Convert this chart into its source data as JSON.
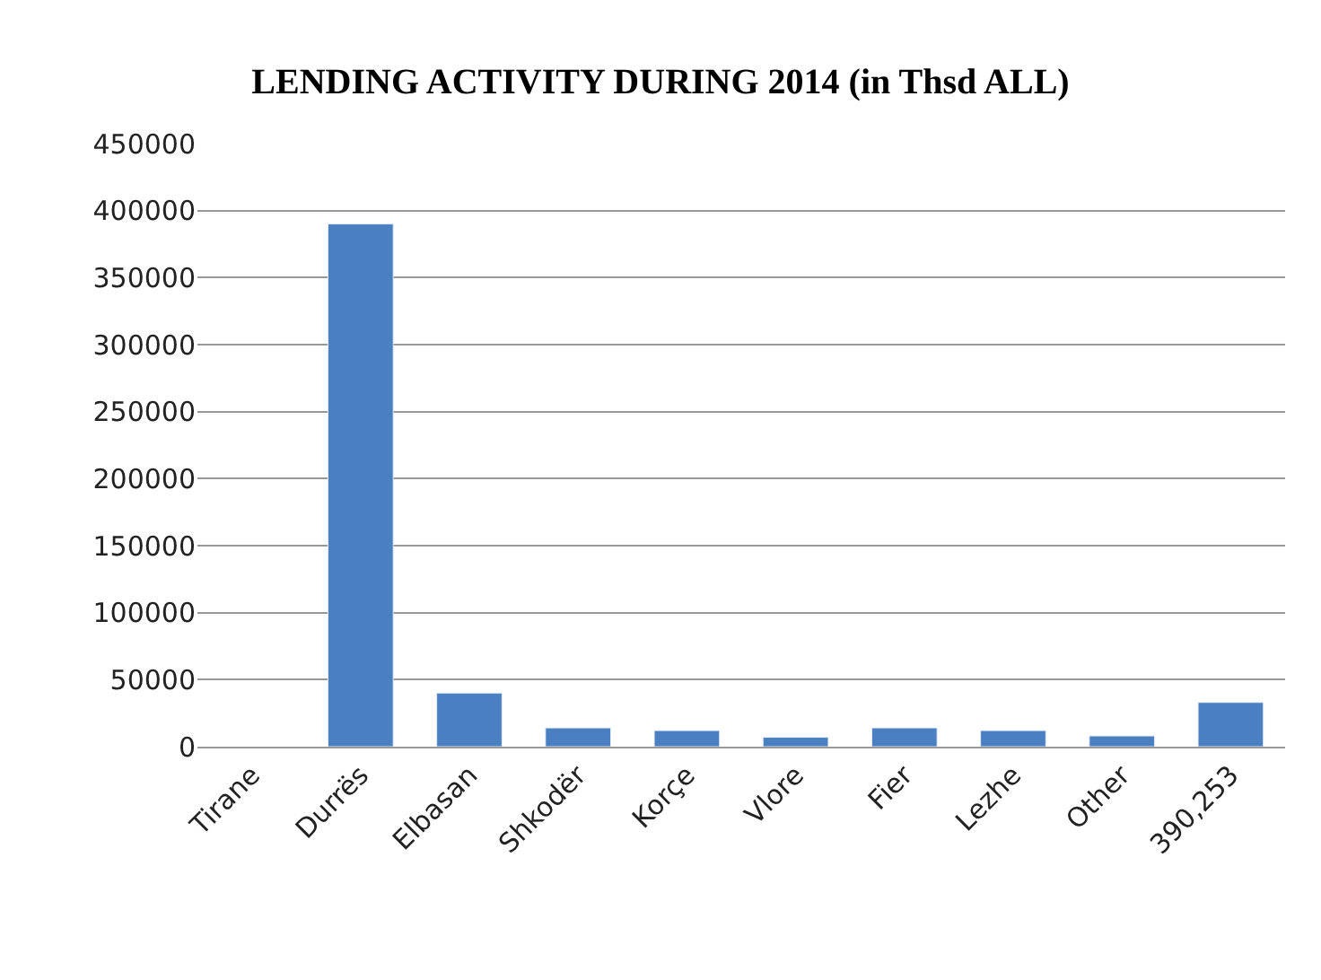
{
  "chart_data": {
    "type": "bar",
    "title": "LENDING ACTIVITY DURING 2014 (in Thsd ALL)",
    "categories": [
      "Tirane",
      "Durrës",
      "Elbasan",
      "Shkodër",
      "Korçe",
      "Vlore",
      "Fier",
      "Lezhe",
      "Other",
      "390,253"
    ],
    "values": [
      null,
      390000,
      40000,
      14000,
      12000,
      7000,
      14000,
      12000,
      8000,
      33000
    ],
    "color": "#4a7fc1",
    "ylim": [
      0,
      450000
    ],
    "yticks": [
      0,
      50000,
      100000,
      150000,
      200000,
      250000,
      300000,
      350000,
      400000,
      450000
    ],
    "grid": "y"
  }
}
